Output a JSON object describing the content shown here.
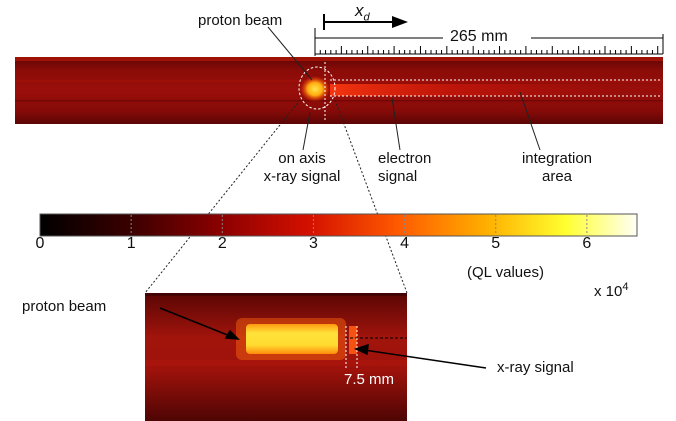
{
  "labels": {
    "proton_beam_top": "proton beam",
    "xd_main": "x",
    "xd_sub": "d",
    "length": "265 mm",
    "on_axis": "on axis\nx-ray signal",
    "electron": "electron\nsignal",
    "integration": "integration\narea",
    "colorbar_unit": "(QL values)",
    "colorbar_scale_base": "x 10",
    "colorbar_scale_exp": "4",
    "proton_beam_zoom": "proton beam",
    "xray_zoom": "x-ray signal",
    "dist_zoom": "7.5 mm"
  },
  "colorbar": {
    "ticks": [
      "0",
      "1",
      "2",
      "3",
      "4",
      "5",
      "6"
    ],
    "tick_values": [
      0,
      1,
      2,
      3,
      4,
      5,
      6
    ],
    "max_value": 6.55
  },
  "colors": {
    "background": "#8a0a08",
    "hot": "#ffe21a",
    "white": "#ffffff"
  }
}
